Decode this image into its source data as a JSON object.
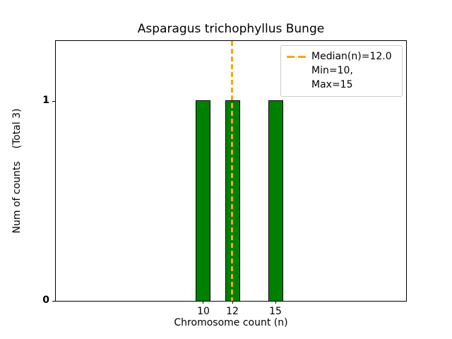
{
  "chart_data": {
    "type": "bar",
    "title": "Asparagus trichophyllus Bunge",
    "xlabel": "Chromosome count (n)",
    "ylabel": "Num of counts    (Total 3)",
    "categories": [
      10,
      12,
      15
    ],
    "values": [
      1,
      1,
      1
    ],
    "total_counts": 3,
    "median": 12.0,
    "min": 10,
    "max": 15,
    "xtick_labels": [
      "10",
      "12",
      "15"
    ],
    "ytick_labels": [
      "0",
      "1"
    ],
    "ylim": [
      0,
      1.3
    ],
    "grid": false,
    "bar_color": "#008000",
    "bar_edge_color": "#000000",
    "median_line_color": "#FFA500",
    "median_line_style": "dashed",
    "legend": {
      "position": "upper right",
      "entries": [
        {
          "label": "Median(n)=12.0",
          "marker": "orange-dashed-line"
        },
        {
          "label": "Min=10, Max=15",
          "marker": "none"
        }
      ]
    }
  }
}
